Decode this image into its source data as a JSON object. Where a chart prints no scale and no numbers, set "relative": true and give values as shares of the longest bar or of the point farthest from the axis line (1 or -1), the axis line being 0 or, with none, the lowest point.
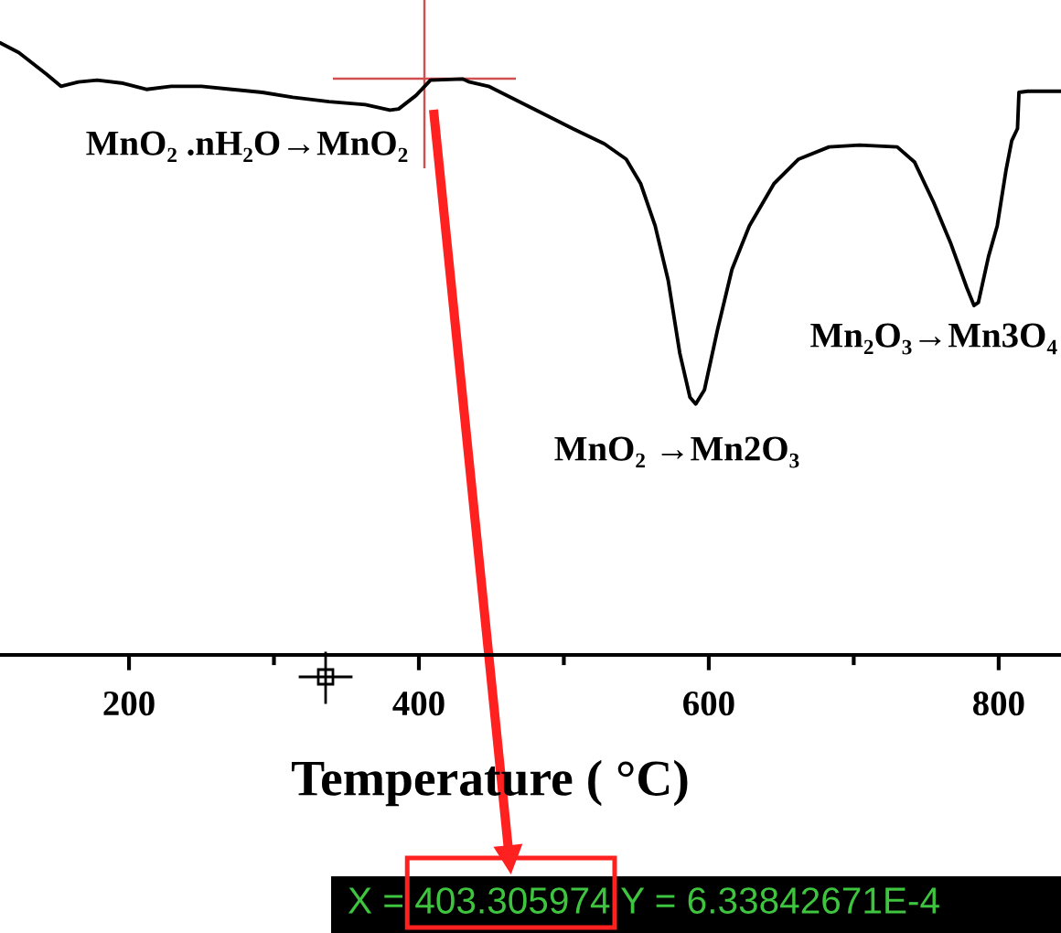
{
  "chart_data": {
    "type": "line",
    "relative": true,
    "xlabel": "Temperature ( °C)",
    "xlim": [
      111,
      843
    ],
    "xticks": [
      200,
      {
        "value": 300,
        "label": null
      },
      400,
      {
        "value": 500,
        "label": null
      },
      600,
      {
        "value": 700,
        "label": null
      },
      800
    ],
    "grid": false,
    "color": "#000000",
    "x": [
      111,
      124,
      143,
      153,
      165,
      178,
      196,
      212,
      229,
      250,
      271,
      292,
      313,
      338,
      363,
      380,
      386,
      398,
      408,
      430,
      435,
      448,
      464,
      486,
      506,
      528,
      543,
      553,
      563,
      572,
      580,
      587,
      591,
      597,
      606,
      616,
      628,
      645,
      662,
      683,
      704,
      730,
      742,
      755,
      767,
      778,
      783,
      786,
      793,
      799,
      805,
      809,
      813,
      814,
      820,
      843
    ],
    "values": [
      1.0,
      0.984,
      0.949,
      0.929,
      0.936,
      0.939,
      0.934,
      0.924,
      0.929,
      0.929,
      0.924,
      0.919,
      0.911,
      0.904,
      0.899,
      0.89,
      0.892,
      0.914,
      0.939,
      0.941,
      0.936,
      0.929,
      0.91,
      0.884,
      0.86,
      0.835,
      0.81,
      0.77,
      0.701,
      0.612,
      0.493,
      0.421,
      0.41,
      0.433,
      0.531,
      0.63,
      0.701,
      0.77,
      0.81,
      0.83,
      0.833,
      0.83,
      0.805,
      0.74,
      0.672,
      0.6,
      0.571,
      0.576,
      0.651,
      0.701,
      0.791,
      0.84,
      0.86,
      0.919,
      0.921,
      0.921
    ],
    "annotations": [
      "MnO₂ .nH₂O→MnO₂",
      "Mn₂O₃→Mn3O₄",
      "MnO₂ →Mn2O₃",
      "X = 403.305974 Y = 6.33842671E-4"
    ]
  }
}
